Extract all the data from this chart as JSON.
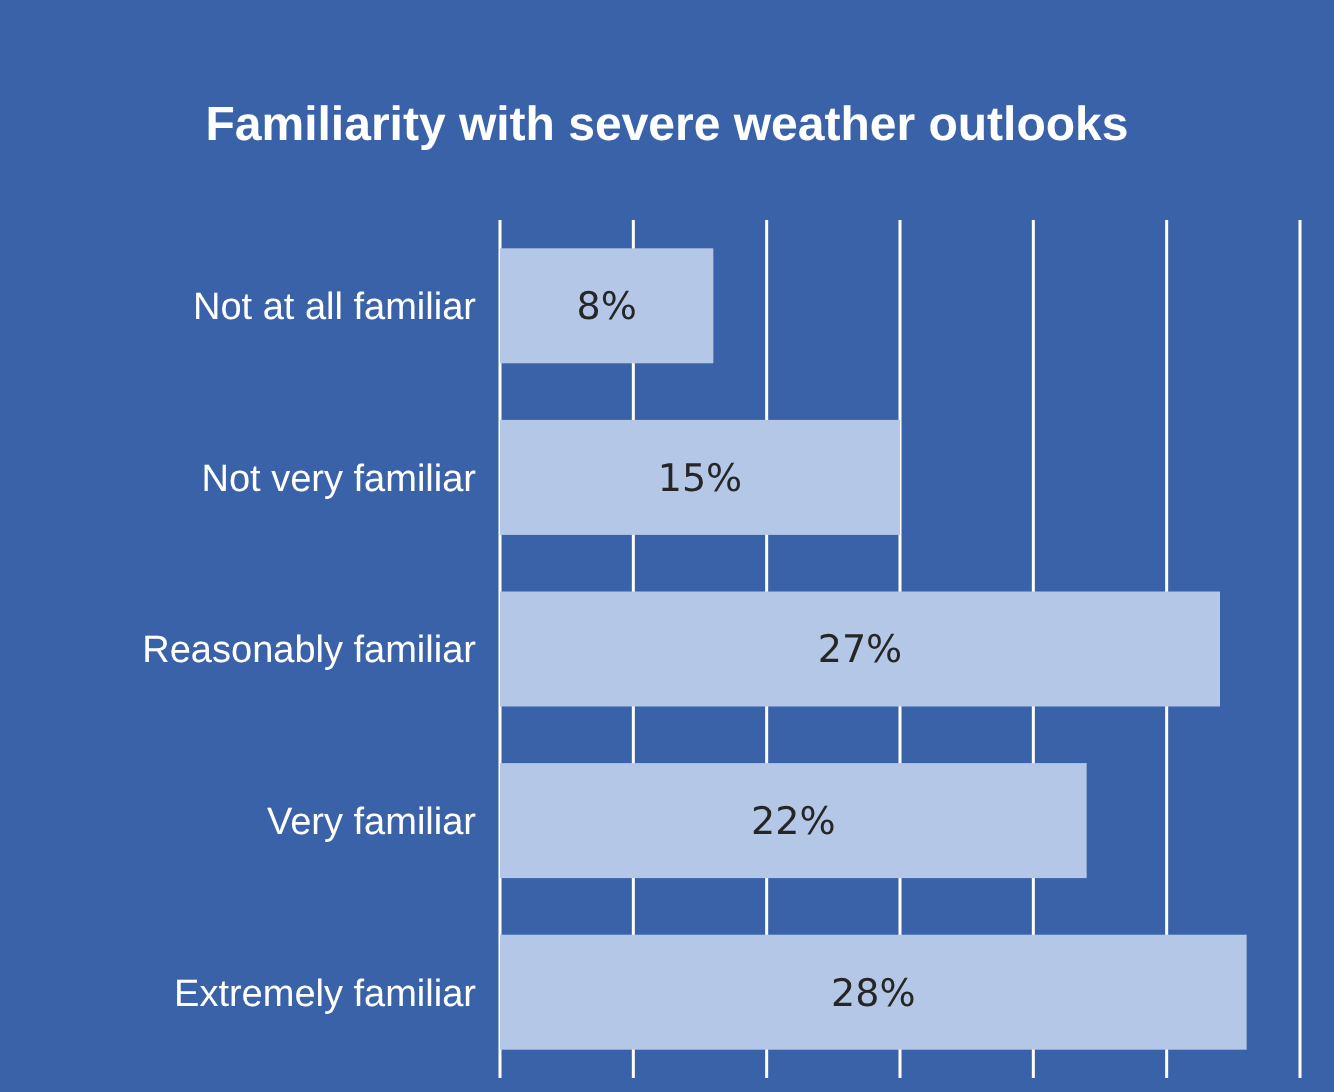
{
  "chart_data": {
    "type": "bar",
    "orientation": "horizontal",
    "title": "Familiarity with severe weather outlooks",
    "categories": [
      "Not at all familiar",
      "Not very familiar",
      "Reasonably familiar",
      "Very familiar",
      "Extremely familiar"
    ],
    "values": [
      8,
      15,
      27,
      22,
      28
    ],
    "color": "#b4c7e7",
    "data_labels": true,
    "value_labels": [
      "8%",
      "15%",
      "27%",
      "22%",
      "28%"
    ],
    "xlim": [
      0,
      30
    ],
    "xticks": [
      {
        "value": 0,
        "label": null
      },
      {
        "value": 5,
        "label": null
      },
      {
        "value": 10,
        "label": null
      },
      {
        "value": 15,
        "label": null
      },
      {
        "value": 20,
        "label": null
      },
      {
        "value": 25,
        "label": null
      },
      {
        "value": 30,
        "label": null
      }
    ],
    "grid": "x"
  }
}
